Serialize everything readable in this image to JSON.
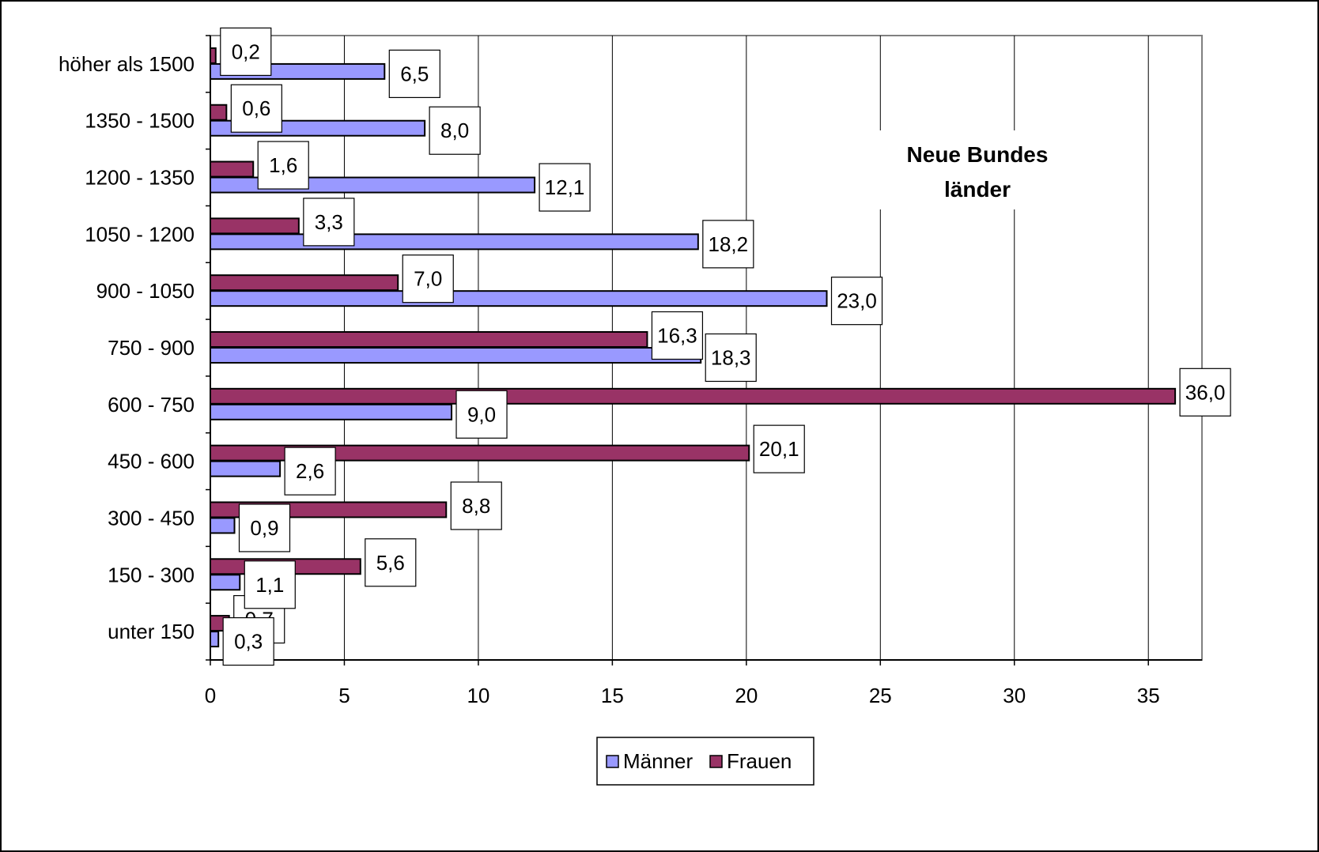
{
  "chart_data": {
    "type": "bar",
    "orientation": "horizontal",
    "title_lines": [
      "Neue Bundes",
      "länder"
    ],
    "categories": [
      "unter 150",
      "150 - 300",
      "300 - 450",
      "450 - 600",
      "600 - 750",
      "750 - 900",
      "900 - 1050",
      "1050 - 1200",
      "1200 - 1350",
      "1350 - 1500",
      "höher als 1500"
    ],
    "series": [
      {
        "name": "Männer",
        "color": "#9999ff",
        "values": [
          0.3,
          1.1,
          0.9,
          2.6,
          9.0,
          18.3,
          23.0,
          18.2,
          12.1,
          8.0,
          6.5
        ],
        "labels": [
          "0,3",
          "1,1",
          "0,9",
          "2,6",
          "9,0",
          "18,3",
          "23,0",
          "18,2",
          "12,1",
          "8,0",
          "6,5"
        ]
      },
      {
        "name": "Frauen",
        "color": "#993366",
        "values": [
          0.7,
          5.6,
          8.8,
          20.1,
          36.0,
          16.3,
          7.0,
          3.3,
          1.6,
          0.6,
          0.2
        ],
        "labels": [
          "0,7",
          "5,6",
          "8,8",
          "20,1",
          "36,0",
          "16,3",
          "7,0",
          "3,3",
          "1,6",
          "0,6",
          "0,2"
        ]
      }
    ],
    "xlim": [
      0,
      37
    ],
    "xticks": [
      0,
      5,
      10,
      15,
      20,
      25,
      30,
      35
    ],
    "xtick_labels": [
      "0",
      "5",
      "10",
      "15",
      "20",
      "25",
      "30",
      "35"
    ],
    "grid": "vertical",
    "legend": "bottom"
  }
}
